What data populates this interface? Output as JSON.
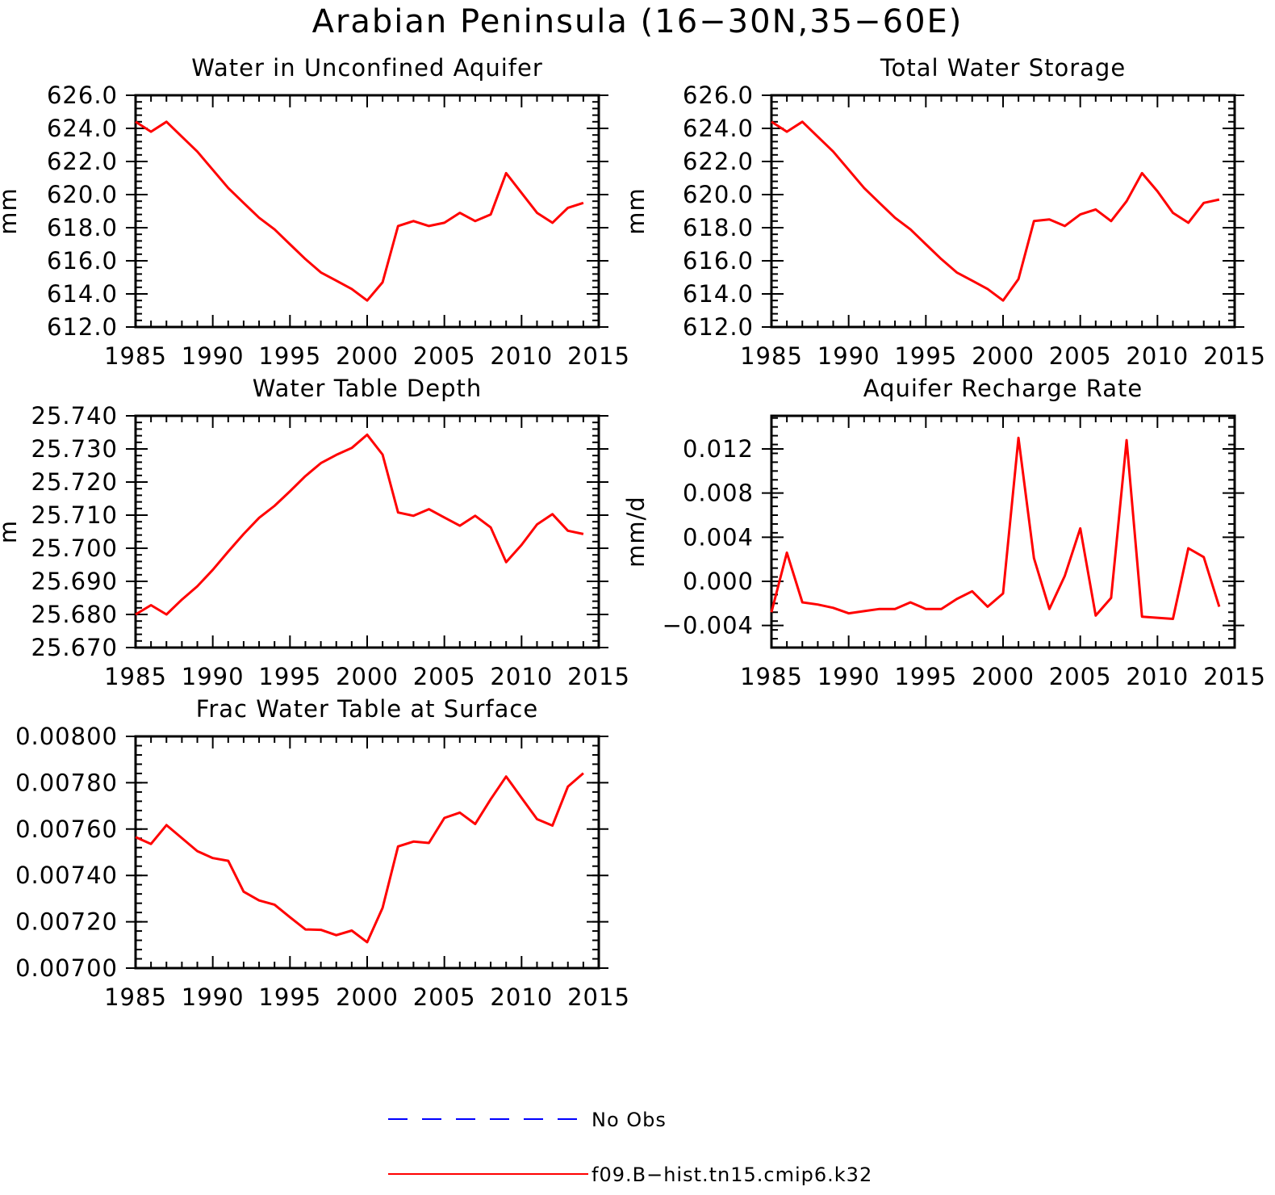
{
  "figure_title": "Arabian Peninsula (16−30N,35−60E)",
  "colors": {
    "model_line": "#ff0000",
    "obs_line": "#0000ff",
    "axes": "#000000"
  },
  "legend": [
    {
      "label": "No Obs",
      "style": "dashed",
      "color": "#0000ff"
    },
    {
      "label": "f09.B−hist.tn15.cmip6.k32",
      "style": "solid",
      "color": "#ff0000"
    }
  ],
  "chart_data": [
    {
      "type": "line",
      "title": "Water in Unconfined Aquifer",
      "ylabel": "mm",
      "xlim": [
        1985,
        2015
      ],
      "ylim": [
        612,
        626
      ],
      "xticks": [
        "1985",
        "1990",
        "1995",
        "2000",
        "2005",
        "2010",
        "2015"
      ],
      "yticks": [
        "612.0",
        "614.0",
        "616.0",
        "618.0",
        "620.0",
        "622.0",
        "624.0",
        "626.0"
      ],
      "series": [
        {
          "x": [
            1985,
            1986,
            1987,
            1988,
            1989,
            1990,
            1991,
            1992,
            1993,
            1994,
            1995,
            1996,
            1997,
            1998,
            1999,
            2000,
            2001,
            2002,
            2003,
            2004,
            2005,
            2006,
            2007,
            2008,
            2009,
            2010,
            2011,
            2012,
            2013,
            2014
          ],
          "values": [
            624.4,
            623.8,
            624.4,
            623.5,
            622.6,
            621.5,
            620.4,
            619.5,
            618.6,
            617.9,
            617.0,
            616.1,
            615.3,
            614.8,
            614.3,
            613.6,
            614.7,
            618.1,
            618.4,
            618.1,
            618.3,
            618.9,
            618.4,
            618.8,
            621.3,
            620.1,
            618.9,
            618.3,
            619.2,
            619.5
          ]
        }
      ]
    },
    {
      "type": "line",
      "title": "Total Water Storage",
      "ylabel": "mm",
      "xlim": [
        1985,
        2015
      ],
      "ylim": [
        612,
        626
      ],
      "xticks": [
        "1985",
        "1990",
        "1995",
        "2000",
        "2005",
        "2010",
        "2015"
      ],
      "yticks": [
        "612.0",
        "614.0",
        "616.0",
        "618.0",
        "620.0",
        "622.0",
        "624.0",
        "626.0"
      ],
      "series": [
        {
          "x": [
            1985,
            1986,
            1987,
            1988,
            1989,
            1990,
            1991,
            1992,
            1993,
            1994,
            1995,
            1996,
            1997,
            1998,
            1999,
            2000,
            2001,
            2002,
            2003,
            2004,
            2005,
            2006,
            2007,
            2008,
            2009,
            2010,
            2011,
            2012,
            2013,
            2014
          ],
          "values": [
            624.4,
            623.8,
            624.4,
            623.5,
            622.6,
            621.5,
            620.4,
            619.5,
            618.6,
            617.9,
            617.0,
            616.1,
            615.3,
            614.8,
            614.3,
            613.6,
            614.9,
            618.4,
            618.5,
            618.1,
            618.8,
            619.1,
            618.4,
            619.6,
            621.3,
            620.2,
            618.9,
            618.3,
            619.5,
            619.7
          ]
        }
      ]
    },
    {
      "type": "line",
      "title": "Water Table Depth",
      "ylabel": "m",
      "xlim": [
        1985,
        2015
      ],
      "ylim": [
        25.67,
        25.74
      ],
      "xticks": [
        "1985",
        "1990",
        "1995",
        "2000",
        "2005",
        "2010",
        "2015"
      ],
      "yticks": [
        "25.670",
        "25.680",
        "25.690",
        "25.700",
        "25.710",
        "25.720",
        "25.730",
        "25.740"
      ],
      "series": [
        {
          "x": [
            1985,
            1986,
            1987,
            1988,
            1989,
            1990,
            1991,
            1992,
            1993,
            1994,
            1995,
            1996,
            1997,
            1998,
            1999,
            2000,
            2001,
            2002,
            2003,
            2004,
            2005,
            2006,
            2007,
            2008,
            2009,
            2010,
            2011,
            2012,
            2013,
            2014
          ],
          "values": [
            25.68,
            25.6828,
            25.68,
            25.6845,
            25.6885,
            25.6935,
            25.699,
            25.7043,
            25.7092,
            25.7128,
            25.7172,
            25.7218,
            25.7257,
            25.7282,
            25.7303,
            25.7343,
            25.7283,
            25.7108,
            25.7098,
            25.7118,
            25.7093,
            25.7068,
            25.7098,
            25.7063,
            25.6958,
            25.701,
            25.7072,
            25.7103,
            25.7053,
            25.7043
          ]
        }
      ]
    },
    {
      "type": "line",
      "title": "Aquifer Recharge Rate",
      "ylabel": "mm/d",
      "xlim": [
        1985,
        2015
      ],
      "ylim": [
        -0.006,
        0.015
      ],
      "xticks": [
        "1985",
        "1990",
        "1995",
        "2000",
        "2005",
        "2010",
        "2015"
      ],
      "yticks": [
        "−0.004",
        "0.000",
        "0.004",
        "0.008",
        "0.012"
      ],
      "series": [
        {
          "x": [
            1985,
            1986,
            1987,
            1988,
            1989,
            1990,
            1991,
            1992,
            1993,
            1994,
            1995,
            1996,
            1997,
            1998,
            1999,
            2000,
            2001,
            2002,
            2003,
            2004,
            2005,
            2006,
            2007,
            2008,
            2009,
            2010,
            2011,
            2012,
            2013,
            2014
          ],
          "values": [
            -0.0028,
            0.0026,
            -0.0019,
            -0.0021,
            -0.0024,
            -0.0029,
            -0.0027,
            -0.0025,
            -0.0025,
            -0.0019,
            -0.0025,
            -0.0025,
            -0.0016,
            -0.0009,
            -0.0023,
            -0.0011,
            0.013,
            0.0021,
            -0.0025,
            0.0005,
            0.0048,
            -0.0031,
            -0.0015,
            0.0128,
            -0.0032,
            -0.0033,
            -0.0034,
            0.003,
            0.0022,
            -0.0023
          ]
        }
      ]
    },
    {
      "type": "line",
      "title": "Frac Water Table at Surface",
      "ylabel": "",
      "xlim": [
        1985,
        2015
      ],
      "ylim": [
        0.007,
        0.008
      ],
      "xticks": [
        "1985",
        "1990",
        "1995",
        "2000",
        "2005",
        "2010",
        "2015"
      ],
      "yticks": [
        "0.00700",
        "0.00720",
        "0.00740",
        "0.00760",
        "0.00780",
        "0.00800"
      ],
      "series": [
        {
          "x": [
            1985,
            1986,
            1987,
            1988,
            1989,
            1990,
            1991,
            1992,
            1993,
            1994,
            1995,
            1996,
            1997,
            1998,
            1999,
            2000,
            2001,
            2002,
            2003,
            2004,
            2005,
            2006,
            2007,
            2008,
            2009,
            2010,
            2011,
            2012,
            2013,
            2014
          ],
          "values": [
            0.007565,
            0.007536,
            0.007617,
            0.007561,
            0.007505,
            0.007475,
            0.007463,
            0.00733,
            0.007292,
            0.007274,
            0.00722,
            0.007167,
            0.007165,
            0.007142,
            0.007162,
            0.007112,
            0.00726,
            0.007525,
            0.007546,
            0.00754,
            0.007648,
            0.007671,
            0.007622,
            0.007729,
            0.007827,
            0.007735,
            0.007643,
            0.007615,
            0.007783,
            0.007841
          ]
        }
      ]
    }
  ]
}
